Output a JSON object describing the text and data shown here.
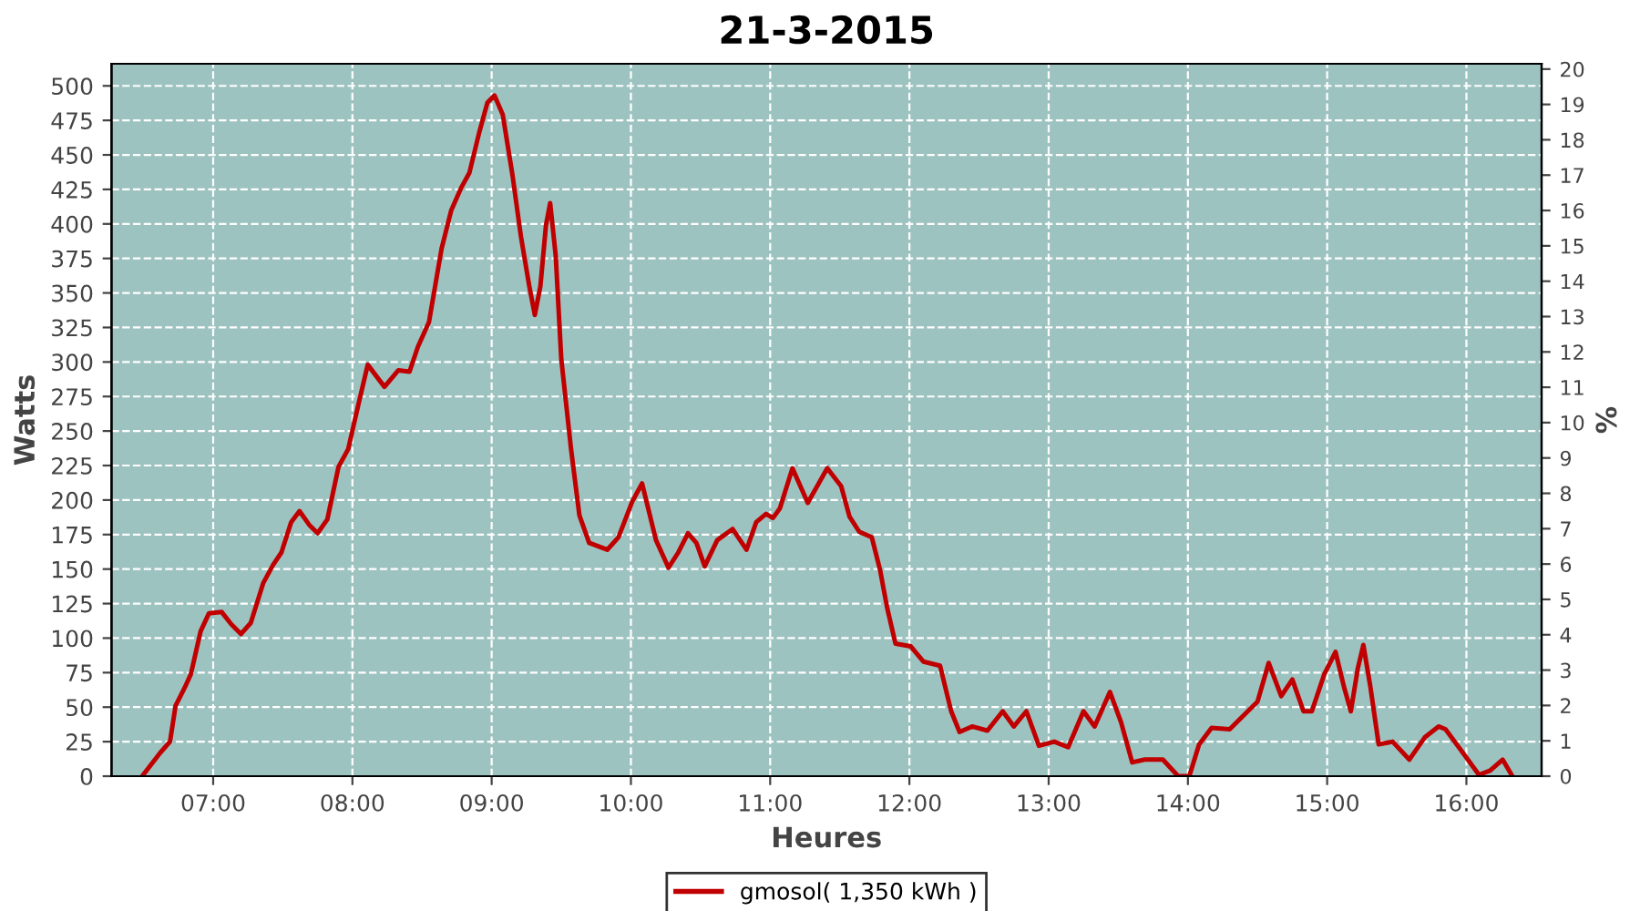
{
  "chart_data": {
    "type": "line",
    "title": "21-3-2015",
    "xlabel": "Heures",
    "ylabel": "Watts",
    "y2label": "%",
    "xlim": [
      6.27,
      16.54
    ],
    "xticks": [
      {
        "value": 7,
        "label": "07:00"
      },
      {
        "value": 8,
        "label": "08:00"
      },
      {
        "value": 9,
        "label": "09:00"
      },
      {
        "value": 10,
        "label": "10:00"
      },
      {
        "value": 11,
        "label": "11:00"
      },
      {
        "value": 12,
        "label": "12:00"
      },
      {
        "value": 13,
        "label": "13:00"
      },
      {
        "value": 14,
        "label": "14:00"
      },
      {
        "value": 15,
        "label": "15:00"
      },
      {
        "value": 16,
        "label": "16:00"
      }
    ],
    "ylim": [
      0,
      516
    ],
    "yticks": [
      0,
      25,
      50,
      75,
      100,
      125,
      150,
      175,
      200,
      225,
      250,
      275,
      300,
      325,
      350,
      375,
      400,
      425,
      450,
      475,
      500
    ],
    "y2lim": [
      0,
      20.15
    ],
    "y2ticks": [
      0,
      1,
      2,
      3,
      4,
      5,
      6,
      7,
      8,
      9,
      10,
      11,
      12,
      13,
      14,
      15,
      16,
      17,
      18,
      19,
      20
    ],
    "grid": true,
    "legend": "bottom",
    "line_style": "solid",
    "marker": "none",
    "series": [
      {
        "name": "gmosol( 1,350 kWh )",
        "color": "#c00000",
        "x": [
          6.49,
          6.62,
          6.69,
          6.73,
          6.8,
          6.84,
          6.91,
          6.97,
          7.06,
          7.13,
          7.2,
          7.27,
          7.36,
          7.43,
          7.49,
          7.56,
          7.62,
          7.69,
          7.75,
          7.82,
          7.9,
          7.97,
          8.04,
          8.11,
          8.23,
          8.33,
          8.41,
          8.47,
          8.55,
          8.64,
          8.71,
          8.78,
          8.84,
          8.91,
          8.97,
          9.02,
          9.08,
          9.15,
          9.21,
          9.27,
          9.31,
          9.35,
          9.39,
          9.42,
          9.46,
          9.5,
          9.57,
          9.63,
          9.7,
          9.83,
          9.91,
          10.01,
          10.08,
          10.18,
          10.27,
          10.34,
          10.41,
          10.47,
          10.53,
          10.62,
          10.73,
          10.83,
          10.9,
          10.97,
          11.02,
          11.07,
          11.16,
          11.27,
          11.41,
          11.51,
          11.57,
          11.64,
          11.73,
          11.79,
          11.84,
          11.9,
          12.01,
          12.1,
          12.22,
          12.3,
          12.36,
          12.45,
          12.56,
          12.67,
          12.75,
          12.84,
          12.93,
          13.04,
          13.14,
          13.25,
          13.33,
          13.44,
          13.52,
          13.6,
          13.69,
          13.82,
          13.93,
          14.01,
          14.08,
          14.17,
          14.3,
          14.43,
          14.5,
          14.58,
          14.67,
          14.75,
          14.83,
          14.89,
          14.98,
          15.06,
          15.12,
          15.17,
          15.22,
          15.26,
          15.31,
          15.37,
          15.47,
          15.59,
          15.7,
          15.8,
          15.85,
          15.96,
          16.09,
          16.17,
          16.26,
          16.33
        ],
        "values": [
          0,
          17,
          25,
          51,
          65,
          74,
          105,
          118,
          119,
          110,
          103,
          111,
          140,
          153,
          162,
          184,
          192,
          182,
          176,
          186,
          224,
          237,
          268,
          298,
          282,
          294,
          293,
          311,
          329,
          382,
          410,
          426,
          437,
          466,
          488,
          493,
          479,
          435,
          391,
          355,
          334,
          355,
          399,
          415,
          377,
          302,
          237,
          189,
          169,
          164,
          173,
          199,
          212,
          171,
          151,
          162,
          176,
          169,
          152,
          171,
          179,
          164,
          184,
          190,
          187,
          194,
          223,
          198,
          223,
          210,
          188,
          177,
          173,
          149,
          122,
          96,
          94,
          83,
          80,
          47,
          32,
          36,
          33,
          47,
          36,
          47,
          22,
          25,
          21,
          47,
          36,
          61,
          39,
          10,
          12,
          12,
          0,
          0,
          23,
          35,
          34,
          47,
          54,
          82,
          58,
          70,
          47,
          47,
          74,
          90,
          65,
          47,
          78,
          95,
          65,
          23,
          25,
          12,
          28,
          36,
          34,
          19,
          1,
          4,
          12,
          0
        ]
      }
    ]
  }
}
